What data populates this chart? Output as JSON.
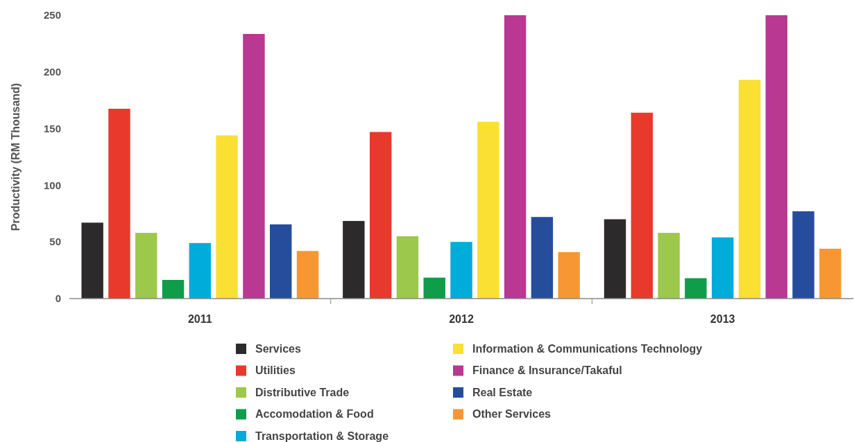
{
  "chart_data": {
    "type": "bar",
    "ylabel": "Productivity (RM Thousand)",
    "categories": [
      "2011",
      "2012",
      "2013"
    ],
    "series": [
      {
        "name": "Services",
        "color": "#2d2a2b",
        "values": [
          67,
          68.5,
          70
        ]
      },
      {
        "name": "Utilities",
        "color": "#e8392d",
        "values": [
          167.5,
          147,
          164
        ]
      },
      {
        "name": "Distributive Trade",
        "color": "#9cc84b",
        "values": [
          58,
          55,
          58
        ]
      },
      {
        "name": "Accomodation & Food",
        "color": "#0f9d4a",
        "values": [
          16.5,
          18.5,
          18
        ]
      },
      {
        "name": "Transportation & Storage",
        "color": "#00acd9",
        "values": [
          49,
          50,
          54
        ]
      },
      {
        "name": "Information & Communications Technology",
        "color": "#f9e032",
        "values": [
          144,
          156,
          193
        ]
      },
      {
        "name": "Finance & Insurance/Takaful",
        "color": "#b83892",
        "values": [
          233.5,
          250,
          250
        ]
      },
      {
        "name": "Real Estate",
        "color": "#264d9c",
        "values": [
          65.5,
          72,
          77
        ]
      },
      {
        "name": "Other Services",
        "color": "#f69733",
        "values": [
          42,
          41,
          44
        ]
      }
    ],
    "ylim": [
      0,
      250
    ],
    "yticks": [
      0,
      50,
      100,
      150,
      200,
      250
    ],
    "grid": false,
    "legend": "bottom"
  }
}
